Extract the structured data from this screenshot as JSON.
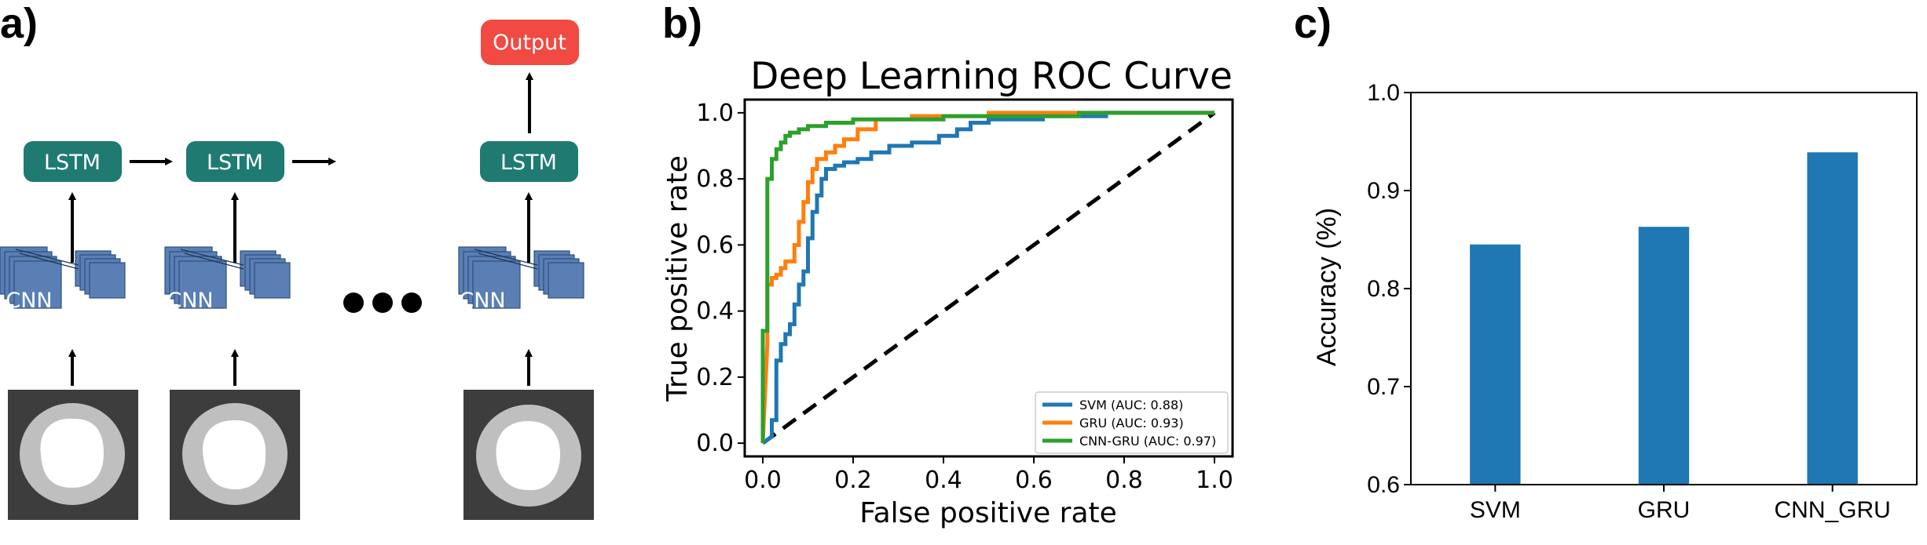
{
  "panels": {
    "a": {
      "label": "a)",
      "output_label": "Output",
      "lstm_labels": [
        "LSTM",
        "LSTM",
        "LSTM"
      ],
      "cnn_labels": [
        "CNN",
        "CNN",
        "CNN"
      ]
    },
    "b": {
      "label": "b)"
    },
    "c": {
      "label": "c)"
    }
  },
  "colors": {
    "lstm": "#1f7a72",
    "output": "#f04a43",
    "cnn": "#5a7fb5",
    "svm": "#1f77b4",
    "gru": "#ff7f0e",
    "cnn_gru": "#2ca02c",
    "bar": "#1f77b4",
    "image_bg": "#3d3d3d",
    "ring": "#bfbfbf"
  },
  "chart_data": [
    {
      "type": "line",
      "title": "Deep Learning ROC Curve",
      "xlabel": "False positive rate",
      "ylabel": "True positive rate",
      "xlim": [
        -0.04,
        1.04
      ],
      "ylim": [
        -0.04,
        1.04
      ],
      "xticks": [
        "0.0",
        "0.2",
        "0.4",
        "0.6",
        "0.8",
        "1.0"
      ],
      "yticks": [
        "0.0",
        "0.2",
        "0.4",
        "0.6",
        "0.8",
        "1.0"
      ],
      "legend_position": "lower-right",
      "series": [
        {
          "name": "SVM (AUC: 0.88)",
          "color": "#1f77b4",
          "x": [
            0.0,
            0.02,
            0.02,
            0.03,
            0.03,
            0.04,
            0.04,
            0.05,
            0.05,
            0.06,
            0.06,
            0.07,
            0.07,
            0.08,
            0.08,
            0.09,
            0.09,
            0.1,
            0.1,
            0.11,
            0.11,
            0.12,
            0.12,
            0.13,
            0.13,
            0.14,
            0.14,
            0.16,
            0.16,
            0.18,
            0.18,
            0.21,
            0.21,
            0.24,
            0.24,
            0.28,
            0.28,
            0.33,
            0.33,
            0.39,
            0.39,
            0.43,
            0.43,
            0.46,
            0.46,
            0.5,
            0.5,
            0.62,
            0.62,
            0.76,
            0.76,
            1.0
          ],
          "y": [
            0.0,
            0.02,
            0.07,
            0.07,
            0.25,
            0.25,
            0.3,
            0.3,
            0.33,
            0.33,
            0.36,
            0.36,
            0.42,
            0.42,
            0.48,
            0.48,
            0.52,
            0.52,
            0.62,
            0.62,
            0.7,
            0.7,
            0.75,
            0.75,
            0.8,
            0.8,
            0.83,
            0.83,
            0.84,
            0.84,
            0.85,
            0.85,
            0.86,
            0.86,
            0.88,
            0.88,
            0.9,
            0.9,
            0.91,
            0.91,
            0.93,
            0.93,
            0.95,
            0.95,
            0.97,
            0.97,
            0.98,
            0.98,
            0.99,
            0.99,
            1.0,
            1.0
          ]
        },
        {
          "name": "GRU (AUC: 0.93)",
          "color": "#ff7f0e",
          "x": [
            0.0,
            0.01,
            0.01,
            0.02,
            0.02,
            0.03,
            0.03,
            0.04,
            0.04,
            0.05,
            0.05,
            0.07,
            0.07,
            0.08,
            0.08,
            0.09,
            0.09,
            0.1,
            0.1,
            0.11,
            0.11,
            0.12,
            0.12,
            0.14,
            0.14,
            0.16,
            0.16,
            0.18,
            0.18,
            0.21,
            0.21,
            0.25,
            0.25,
            0.33,
            0.33,
            0.5,
            0.5,
            0.7,
            0.7,
            1.0
          ],
          "y": [
            0.0,
            0.3,
            0.48,
            0.48,
            0.5,
            0.5,
            0.51,
            0.51,
            0.53,
            0.53,
            0.55,
            0.55,
            0.6,
            0.6,
            0.67,
            0.67,
            0.73,
            0.73,
            0.79,
            0.79,
            0.83,
            0.83,
            0.86,
            0.86,
            0.88,
            0.88,
            0.9,
            0.9,
            0.92,
            0.92,
            0.95,
            0.95,
            0.98,
            0.98,
            0.99,
            0.99,
            1.0,
            1.0,
            1.0,
            1.0
          ]
        },
        {
          "name": "CNN-GRU (AUC: 0.97)",
          "color": "#2ca02c",
          "x": [
            0.0,
            0.0,
            0.01,
            0.01,
            0.02,
            0.02,
            0.03,
            0.03,
            0.04,
            0.04,
            0.05,
            0.05,
            0.06,
            0.06,
            0.08,
            0.08,
            0.1,
            0.1,
            0.14,
            0.14,
            0.2,
            0.2,
            0.4,
            0.4,
            0.7,
            0.7,
            1.0
          ],
          "y": [
            0.0,
            0.34,
            0.34,
            0.8,
            0.8,
            0.86,
            0.86,
            0.89,
            0.89,
            0.91,
            0.91,
            0.93,
            0.93,
            0.94,
            0.94,
            0.95,
            0.95,
            0.96,
            0.96,
            0.97,
            0.97,
            0.98,
            0.98,
            0.99,
            0.99,
            1.0,
            1.0
          ]
        }
      ]
    },
    {
      "type": "bar",
      "categories": [
        "SVM",
        "GRU",
        "CNN_GRU"
      ],
      "values": [
        0.845,
        0.863,
        0.939
      ],
      "ylabel": "Accuracy (%)",
      "ylim": [
        0.6,
        1.0
      ],
      "yticks": [
        "0.6",
        "0.7",
        "0.8",
        "0.9",
        "1.0"
      ]
    }
  ]
}
